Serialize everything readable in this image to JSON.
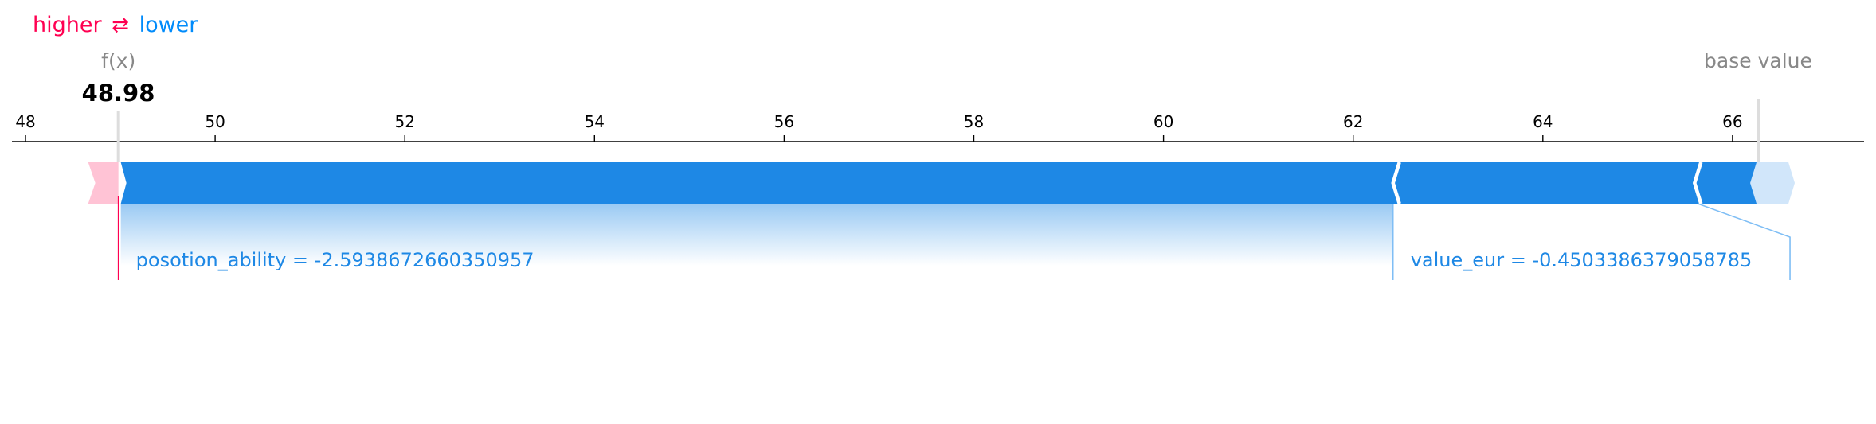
{
  "legend": {
    "higher": "higher",
    "arrow": "⇄",
    "lower": "lower"
  },
  "labels": {
    "fx": "f(x)",
    "fx_value": "48.98",
    "base": "base value"
  },
  "colors": {
    "positive": "#ff0051",
    "negative": "#008bfb",
    "bar_blue": "#1e88e5",
    "pink": "#ffc3d5",
    "light_blue": "#d1e6fa"
  },
  "chart_data": {
    "type": "force",
    "xlim": [
      47.7,
      67.3
    ],
    "ticks": [
      48,
      50,
      52,
      54,
      56,
      58,
      60,
      62,
      64,
      66
    ],
    "output_value": 48.98,
    "base_value": 66.27,
    "features": [
      {
        "label": "posotion_ability = -2.5938672660350957",
        "start": 66.27,
        "end": 62.42,
        "effect": "lower"
      },
      {
        "label": "value_eur = -0.4503386379058785",
        "start": 62.42,
        "end": 48.98,
        "effect": "lower"
      }
    ],
    "minor_segments": [
      {
        "start": 65.6,
        "end": 62.42,
        "effect": "lower"
      }
    ]
  }
}
